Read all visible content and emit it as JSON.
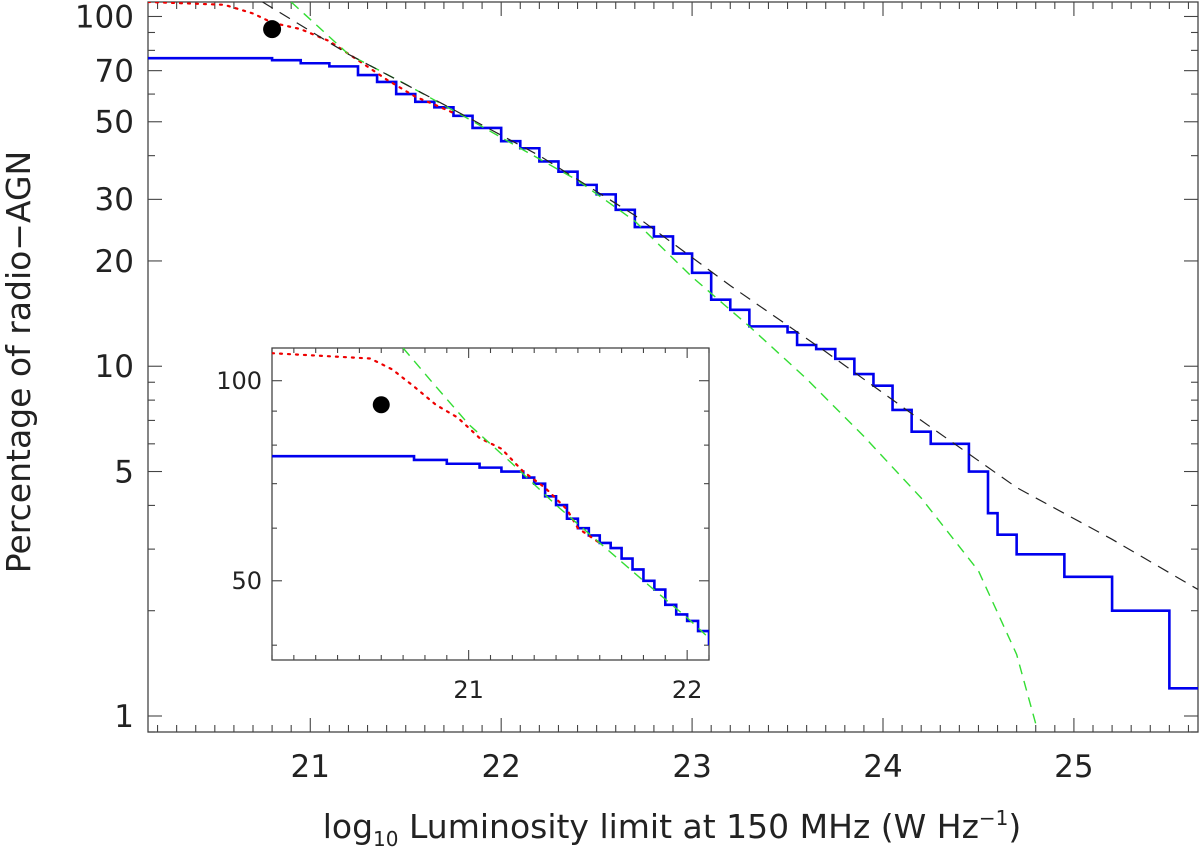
{
  "chart_data": [
    {
      "type": "line",
      "name": "main",
      "xlabel_parts": {
        "pre": "log",
        "sub": "10",
        "mid": " Luminosity limit at 150 MHz (W Hz",
        "sup": "−1",
        "post": ")"
      },
      "ylabel": "Percentage of radio−AGN",
      "xlim": [
        20.15,
        25.65
      ],
      "ylim": [
        0.9,
        110
      ],
      "yscale": "log",
      "xticks": [
        "21",
        "22",
        "23",
        "24",
        "25"
      ],
      "yticks": [
        "1",
        "5",
        "10",
        "20",
        "30",
        "50",
        "70",
        "100"
      ],
      "grid": false,
      "series": [
        {
          "style": "solid-blue",
          "color": "#0000ee",
          "points": [
            [
              20.15,
              76
            ],
            [
              20.6,
              76
            ],
            [
              20.8,
              75
            ],
            [
              20.95,
              73.5
            ],
            [
              21.1,
              72
            ],
            [
              21.25,
              68
            ],
            [
              21.35,
              65
            ],
            [
              21.45,
              60
            ],
            [
              21.55,
              57
            ],
            [
              21.65,
              55
            ],
            [
              21.75,
              52
            ],
            [
              21.85,
              48
            ],
            [
              22.0,
              44
            ],
            [
              22.1,
              42
            ],
            [
              22.2,
              38.5
            ],
            [
              22.3,
              36
            ],
            [
              22.4,
              33
            ],
            [
              22.5,
              31
            ],
            [
              22.6,
              28
            ],
            [
              22.7,
              25
            ],
            [
              22.8,
              23.5
            ],
            [
              22.9,
              21
            ],
            [
              23.0,
              18.5
            ],
            [
              23.1,
              15.5
            ],
            [
              23.2,
              14.5
            ],
            [
              23.3,
              13
            ],
            [
              23.5,
              12.5
            ],
            [
              23.55,
              11.5
            ],
            [
              23.65,
              11.2
            ],
            [
              23.75,
              10.5
            ],
            [
              23.85,
              9.5
            ],
            [
              23.95,
              8.8
            ],
            [
              24.05,
              7.5
            ],
            [
              24.15,
              6.5
            ],
            [
              24.25,
              6
            ],
            [
              24.45,
              5
            ],
            [
              24.55,
              3.8
            ],
            [
              24.6,
              3.3
            ],
            [
              24.7,
              2.9
            ],
            [
              24.95,
              2.5
            ],
            [
              25.2,
              2
            ],
            [
              25.5,
              1.2
            ],
            [
              25.65,
              1.2
            ]
          ]
        },
        {
          "style": "dotted-red",
          "color": "#ee0000",
          "points": [
            [
              20.15,
              110
            ],
            [
              20.55,
              108
            ],
            [
              20.7,
              102
            ],
            [
              20.8,
              96
            ],
            [
              20.95,
              92
            ],
            [
              21.1,
              85
            ],
            [
              21.25,
              75
            ],
            [
              21.4,
              66
            ],
            [
              21.55,
              59
            ],
            [
              21.65,
              56
            ],
            [
              21.75,
              53
            ]
          ]
        },
        {
          "style": "dashed-green",
          "color": "#33dd33",
          "points": [
            [
              20.9,
              110
            ],
            [
              21.2,
              78
            ],
            [
              21.5,
              64
            ],
            [
              21.8,
              52
            ],
            [
              22.1,
              42
            ],
            [
              22.4,
              34
            ],
            [
              22.7,
              26
            ],
            [
              23.0,
              18
            ],
            [
              23.3,
              13
            ],
            [
              23.6,
              9.2
            ],
            [
              23.9,
              6.3
            ],
            [
              24.2,
              4.2
            ],
            [
              24.5,
              2.6
            ],
            [
              24.7,
              1.5
            ],
            [
              24.8,
              0.95
            ]
          ]
        },
        {
          "style": "dashed-black",
          "color": "#222222",
          "points": [
            [
              20.75,
              110
            ],
            [
              21.2,
              78
            ],
            [
              21.7,
              56
            ],
            [
              22.2,
              40
            ],
            [
              22.7,
              27
            ],
            [
              23.2,
              17
            ],
            [
              23.7,
              11
            ],
            [
              24.2,
              7
            ],
            [
              24.7,
              4.5
            ],
            [
              25.2,
              3.2
            ],
            [
              25.65,
              2.3
            ]
          ]
        }
      ],
      "marker": {
        "x": 20.8,
        "y": 92,
        "color": "#000000"
      }
    },
    {
      "type": "line",
      "name": "inset",
      "xlim": [
        20.1,
        22.1
      ],
      "ylim": [
        38,
        112
      ],
      "yscale": "log",
      "xticks": [
        "21",
        "22"
      ],
      "yticks": [
        "50",
        "100"
      ],
      "series": [
        {
          "style": "solid-blue",
          "color": "#0000ee",
          "points": [
            [
              20.1,
              77
            ],
            [
              20.6,
              77
            ],
            [
              20.75,
              76
            ],
            [
              20.9,
              75
            ],
            [
              21.05,
              74
            ],
            [
              21.15,
              73
            ],
            [
              21.25,
              71.5
            ],
            [
              21.3,
              70
            ],
            [
              21.35,
              67
            ],
            [
              21.4,
              65
            ],
            [
              21.45,
              62
            ],
            [
              21.5,
              60
            ],
            [
              21.55,
              58.5
            ],
            [
              21.6,
              57
            ],
            [
              21.65,
              56
            ],
            [
              21.7,
              54
            ],
            [
              21.75,
              52
            ],
            [
              21.8,
              50
            ],
            [
              21.85,
              48.5
            ],
            [
              21.9,
              46
            ],
            [
              21.95,
              44.5
            ],
            [
              22.0,
              43.5
            ],
            [
              22.05,
              42
            ],
            [
              22.1,
              40
            ]
          ]
        },
        {
          "style": "dotted-red",
          "color": "#ee0000",
          "points": [
            [
              20.1,
              110
            ],
            [
              20.55,
              108
            ],
            [
              20.65,
              104
            ],
            [
              20.75,
              98
            ],
            [
              20.85,
              92
            ],
            [
              20.95,
              88
            ],
            [
              21.05,
              82
            ],
            [
              21.15,
              79
            ],
            [
              21.25,
              73
            ],
            [
              21.35,
              69
            ],
            [
              21.45,
              64
            ],
            [
              21.5,
              60
            ],
            [
              21.6,
              57
            ]
          ]
        },
        {
          "style": "dashed-green",
          "color": "#33dd33",
          "points": [
            [
              20.7,
              112
            ],
            [
              20.85,
              98
            ],
            [
              21.0,
              86
            ],
            [
              21.2,
              75
            ],
            [
              21.4,
              65
            ],
            [
              21.6,
              57
            ],
            [
              21.8,
              50
            ],
            [
              22.0,
              44
            ],
            [
              22.1,
              41
            ]
          ]
        }
      ],
      "marker": {
        "x": 20.6,
        "y": 92,
        "color": "#000000"
      }
    }
  ]
}
